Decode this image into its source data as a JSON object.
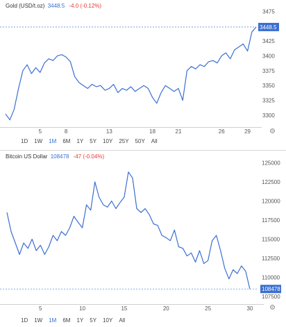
{
  "gold": {
    "name": "Gold (USD/t.oz)",
    "price": "3448.5",
    "change": "-4.0 (-0.12%)",
    "price_tag": "3448.5",
    "ranges": [
      "1D",
      "1W",
      "1M",
      "6M",
      "1Y",
      "5Y",
      "10Y",
      "25Y",
      "50Y",
      "All"
    ],
    "active_range": "1M"
  },
  "btc": {
    "name": "Bitcoin US Dollar",
    "price": "108478",
    "change": "-47 (-0.04%)",
    "price_tag": "108478",
    "ranges": [
      "1D",
      "1W",
      "1M",
      "6M",
      "1Y",
      "5Y",
      "10Y",
      "All"
    ],
    "active_range": "1M"
  },
  "colors": {
    "line": "#3a6fd1",
    "tag_bg": "#3a6fd1",
    "change_negative": "#e53935",
    "grid": "#e6e6e6",
    "axis_text": "#555555"
  },
  "icons": {
    "settings": "gear-icon"
  },
  "chart_data": [
    {
      "type": "line",
      "x": [
        1,
        1.5,
        2,
        2.5,
        3,
        3.5,
        4,
        4.5,
        5,
        5.5,
        6,
        6.5,
        7,
        7.5,
        8,
        8.5,
        9,
        9.5,
        10,
        10.5,
        11,
        11.5,
        12,
        12.5,
        13,
        13.5,
        14,
        14.5,
        15,
        15.5,
        16,
        16.5,
        17,
        17.5,
        18,
        18.5,
        19,
        19.5,
        20,
        20.5,
        21,
        21.5,
        22,
        22.5,
        23,
        23.5,
        24,
        24.5,
        25,
        25.5,
        26,
        26.5,
        27,
        27.5,
        28,
        28.5,
        29,
        29.5,
        30
      ],
      "series": [
        {
          "values": [
            3302,
            3292,
            3310,
            3345,
            3375,
            3385,
            3370,
            3380,
            3372,
            3388,
            3395,
            3392,
            3400,
            3402,
            3398,
            3390,
            3365,
            3355,
            3350,
            3345,
            3352,
            3348,
            3350,
            3342,
            3345,
            3352,
            3338,
            3345,
            3342,
            3348,
            3340,
            3345,
            3350,
            3345,
            3330,
            3320,
            3338,
            3350,
            3345,
            3340,
            3345,
            3325,
            3375,
            3382,
            3378,
            3385,
            3382,
            3390,
            3392,
            3388,
            3400,
            3405,
            3395,
            3410,
            3415,
            3420,
            3408,
            3440,
            3448.5
          ]
        }
      ],
      "xticks": [
        "5",
        "8",
        "13",
        "18",
        "21",
        "26",
        "29"
      ],
      "yticks": [
        "3300",
        "3325",
        "3350",
        "3375",
        "3400",
        "3425",
        "3475"
      ],
      "xlim": [
        1,
        30
      ],
      "ylim": [
        3280,
        3480
      ],
      "grid": false
    },
    {
      "type": "line",
      "x": [
        1,
        1.5,
        2,
        2.5,
        3,
        3.5,
        4,
        4.5,
        5,
        5.5,
        6,
        6.5,
        7,
        7.5,
        8,
        8.5,
        9,
        9.5,
        10,
        10.5,
        11,
        11.5,
        12,
        12.5,
        13,
        13.5,
        14,
        14.5,
        15,
        15.5,
        16,
        16.5,
        17,
        17.5,
        18,
        18.5,
        19,
        19.5,
        20,
        20.5,
        21,
        21.5,
        22,
        22.5,
        23,
        23.5,
        24,
        24.5,
        25,
        25.5,
        26,
        26.5,
        27,
        27.5,
        28,
        28.5,
        29,
        29.5,
        30
      ],
      "series": [
        {
          "values": [
            118500,
            116000,
            114500,
            113000,
            114500,
            113800,
            115000,
            113500,
            114200,
            113000,
            114000,
            115500,
            114800,
            116000,
            115500,
            116500,
            118000,
            117200,
            116500,
            119500,
            118800,
            122500,
            120500,
            119500,
            119200,
            120000,
            119000,
            119800,
            120500,
            123800,
            123000,
            119000,
            118500,
            119000,
            118200,
            117000,
            116800,
            115500,
            115200,
            114800,
            116200,
            114000,
            113800,
            112800,
            113200,
            112000,
            113500,
            111800,
            112200,
            114800,
            115500,
            113500,
            111200,
            109800,
            111000,
            110500,
            111500,
            110800,
            108478
          ]
        }
      ],
      "xticks": [
        "5",
        "10",
        "15",
        "20",
        "25",
        "30"
      ],
      "yticks": [
        "107500",
        "110000",
        "112500",
        "115000",
        "117500",
        "120000",
        "122500",
        "125000"
      ],
      "xlim": [
        1,
        31
      ],
      "ylim": [
        106500,
        125500
      ],
      "grid": false
    }
  ]
}
